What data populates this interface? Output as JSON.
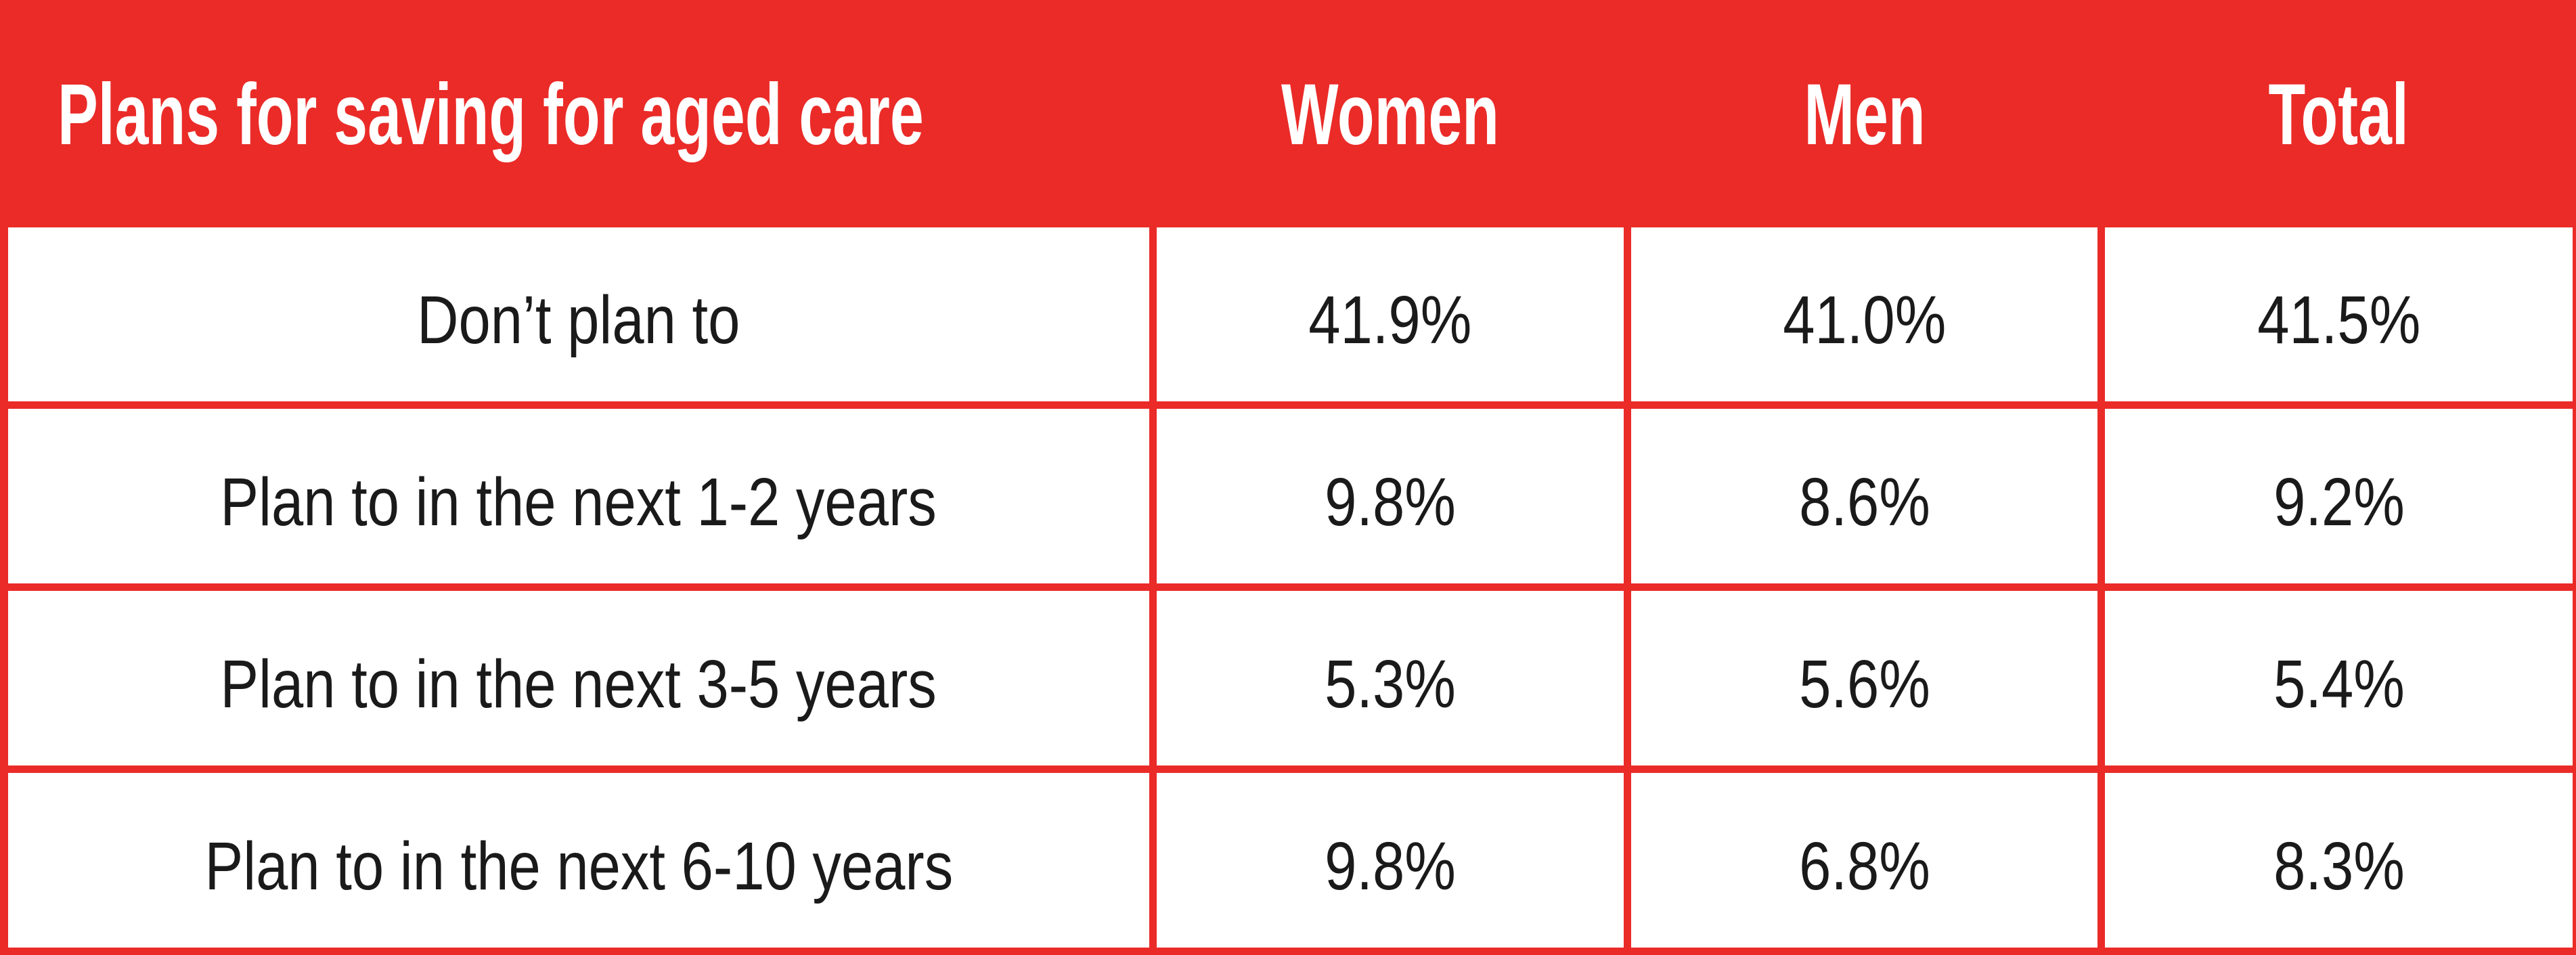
{
  "colors": {
    "accent_red": "#EA2B28",
    "header_text": "#FFFFFF",
    "body_text": "#1A1A1A",
    "cell_bg": "#FFFFFF"
  },
  "table": {
    "header": {
      "label": "Plans for saving for aged care",
      "women": "Women",
      "men": "Men",
      "total": "Total"
    },
    "rows": [
      {
        "label": "Don’t plan to",
        "women": "41.9%",
        "men": "41.0%",
        "total": "41.5%"
      },
      {
        "label": "Plan to in the next 1-2 years",
        "women": "9.8%",
        "men": "8.6%",
        "total": "9.2%"
      },
      {
        "label": "Plan to in the next 3-5 years",
        "women": "5.3%",
        "men": "5.6%",
        "total": "5.4%"
      },
      {
        "label": "Plan to in the next 6-10 years",
        "women": "9.8%",
        "men": "6.8%",
        "total": "8.3%"
      }
    ]
  },
  "chart_data": {
    "type": "table",
    "title": "Plans for saving for aged care",
    "columns": [
      "Plans for saving for aged care",
      "Women",
      "Men",
      "Total"
    ],
    "categories": [
      "Don’t plan to",
      "Plan to in the next 1-2 years",
      "Plan to in the next 3-5 years",
      "Plan to in the next 6-10 years"
    ],
    "series": [
      {
        "name": "Women",
        "values": [
          41.9,
          9.8,
          5.3,
          9.8
        ]
      },
      {
        "name": "Men",
        "values": [
          41.0,
          8.6,
          5.6,
          6.8
        ]
      },
      {
        "name": "Total",
        "values": [
          41.5,
          9.2,
          5.4,
          8.3
        ]
      }
    ],
    "unit": "%",
    "layout": {
      "header_bg": "#EA2B28",
      "grid_color": "#EA2B28",
      "grid": true
    }
  }
}
